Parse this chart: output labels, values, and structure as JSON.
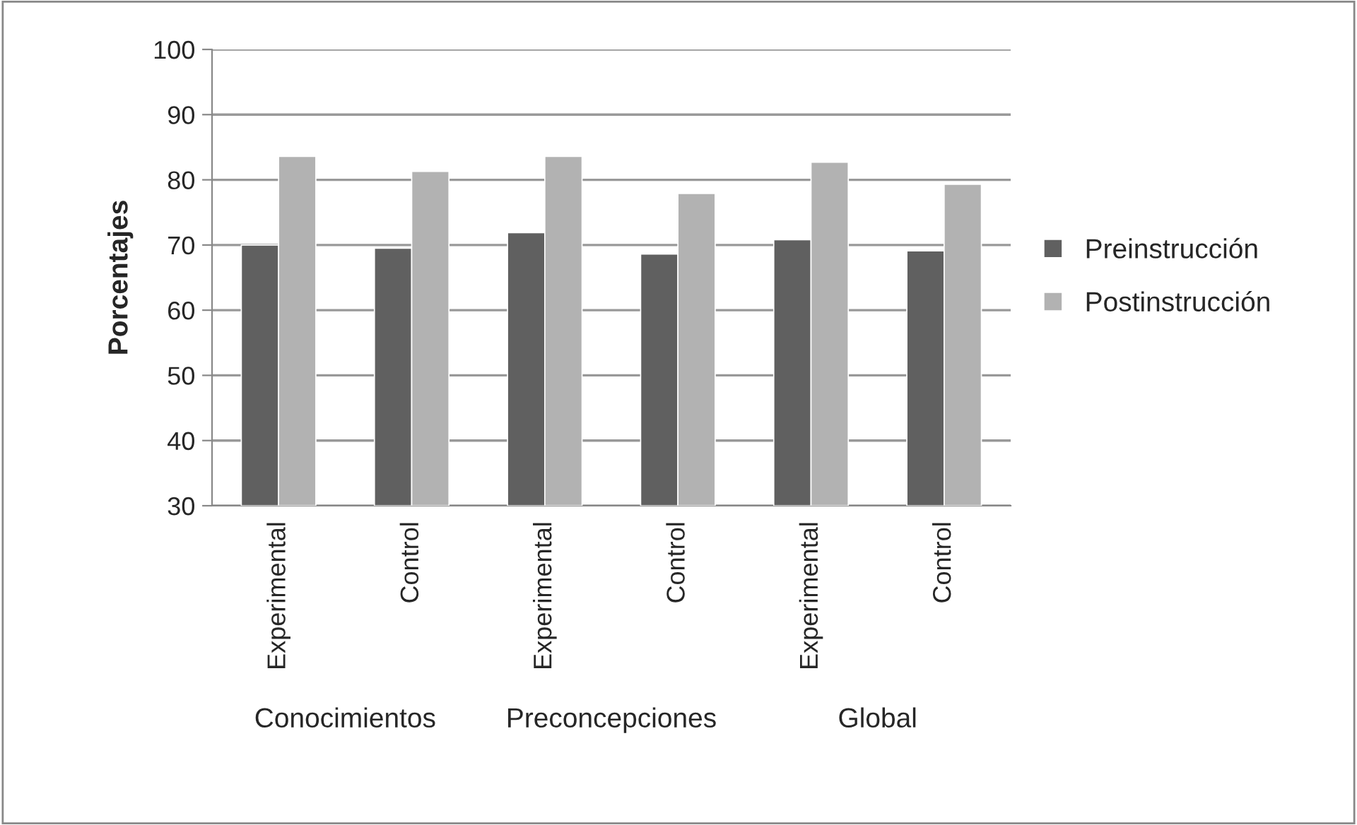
{
  "chart_data": {
    "type": "bar",
    "ylabel": "Porcentajes",
    "categories": [
      "Experimental",
      "Control",
      "Experimental",
      "Control",
      "Experimental",
      "Control"
    ],
    "series": [
      {
        "name": "Preinstrucción",
        "color": "#606060",
        "values": [
          70.0,
          69.5,
          71.9,
          68.6,
          70.8,
          69.1
        ]
      },
      {
        "name": "Postinstrucción",
        "color": "#b2b2b2",
        "values": [
          83.6,
          81.3,
          83.6,
          77.9,
          82.7,
          79.3
        ]
      }
    ],
    "ylim": [
      30,
      100
    ],
    "yticks": [
      30,
      40,
      50,
      60,
      70,
      80,
      90,
      100
    ],
    "grid": "y",
    "legend": "right",
    "annotations": [
      "Conocimientos",
      "Preconcepciones",
      "Global"
    ]
  }
}
